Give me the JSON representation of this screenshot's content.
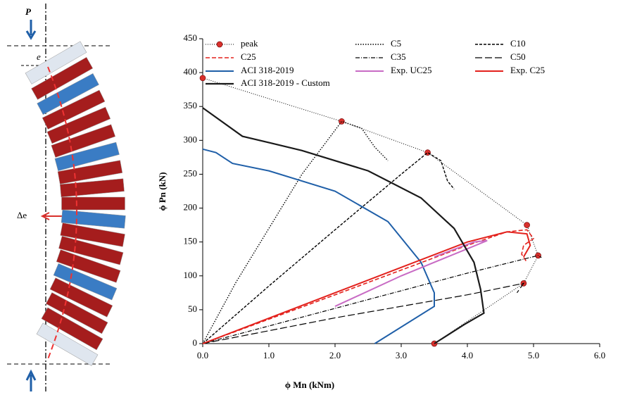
{
  "illustration": {
    "load_label": "P",
    "eccentricity_label": "e",
    "deflection_label": "Δe"
  },
  "chart_data": {
    "type": "line",
    "x_label": "ϕ Mn (kNm)",
    "y_label": "ϕ Pn (kN)",
    "xlim": [
      0,
      6
    ],
    "ylim": [
      0,
      450
    ],
    "xticks": [
      {
        "value": 0,
        "label": "0.0"
      },
      {
        "value": 1,
        "label": "1.0"
      },
      {
        "value": 2,
        "label": "2.0"
      },
      {
        "value": 3,
        "label": "3.0"
      },
      {
        "value": 4,
        "label": "4.0"
      },
      {
        "value": 5,
        "label": "5.0"
      },
      {
        "value": 6,
        "label": "6.0"
      }
    ],
    "yticks": [
      0,
      50,
      100,
      150,
      200,
      250,
      300,
      350,
      400,
      450
    ],
    "legend": "top",
    "series": [
      {
        "name": "peak",
        "color": "#000000",
        "dash": "1,2",
        "width": 1,
        "marker": "circle",
        "marker_color": "#d9302c",
        "x": [
          0,
          2.1,
          3.4,
          4.9,
          5.07,
          4.85,
          3.5
        ],
        "values": [
          392,
          328,
          282,
          175,
          130,
          89,
          0
        ]
      },
      {
        "name": "C5",
        "color": "#000000",
        "dash": "1.5,2",
        "width": 1.4,
        "x": [
          0,
          0.5,
          1.0,
          1.5,
          2.1,
          2.4,
          2.6,
          2.8
        ],
        "values": [
          0,
          90,
          170,
          250,
          328,
          318,
          290,
          270
        ]
      },
      {
        "name": "C10",
        "color": "#000000",
        "dash": "4,2",
        "width": 1.4,
        "x": [
          0,
          1.0,
          2.0,
          3.0,
          3.4,
          3.6,
          3.7,
          3.8
        ],
        "values": [
          0,
          85,
          168,
          250,
          282,
          270,
          240,
          228
        ]
      },
      {
        "name": "C25",
        "color": "#e3211c",
        "dash": "6,3",
        "width": 1.6,
        "x": [
          0,
          2.0,
          4.0,
          4.6,
          4.9,
          5.0,
          4.85,
          4.82,
          4.9
        ],
        "values": [
          0,
          72,
          145,
          165,
          168,
          155,
          145,
          132,
          120
        ]
      },
      {
        "name": "C35",
        "color": "#000000",
        "dash": "6,2,1,2",
        "width": 1.2,
        "x": [
          0,
          2.0,
          4.0,
          5.07,
          5.12
        ],
        "values": [
          0,
          52,
          104,
          130,
          127
        ]
      },
      {
        "name": "C50",
        "color": "#000000",
        "dash": "10,4",
        "width": 1.2,
        "x": [
          0,
          2.0,
          4.0,
          4.85,
          4.75
        ],
        "values": [
          0,
          38,
          72,
          89,
          75
        ]
      },
      {
        "name": "ACI 318-2019",
        "color": "#1f5fa8",
        "dash": "",
        "width": 2,
        "x": [
          0,
          0.2,
          0.45,
          1.0,
          2.0,
          2.8,
          3.3,
          3.5,
          3.5,
          2.6
        ],
        "values": [
          287,
          282,
          266,
          255,
          225,
          180,
          120,
          75,
          55,
          0
        ]
      },
      {
        "name": "Exp. UC25",
        "color": "#c86bc4",
        "dash": "",
        "width": 2,
        "x": [
          2.0,
          3.0,
          4.0,
          4.3,
          4.1,
          3.5
        ],
        "values": [
          55,
          100,
          140,
          152,
          150,
          128
        ]
      },
      {
        "name": "Exp. C25",
        "color": "#e3211c",
        "dash": "",
        "width": 2,
        "x": [
          0,
          2.0,
          4.0,
          4.6,
          4.9,
          4.95,
          4.85
        ],
        "values": [
          0,
          75,
          150,
          165,
          162,
          145,
          128
        ]
      },
      {
        "name": "ACI 318-2019 - Custom",
        "color": "#1a1a1a",
        "dash": "",
        "width": 2.2,
        "x": [
          0,
          0.6,
          1.5,
          2.5,
          3.3,
          3.8,
          4.1,
          4.2,
          4.25,
          3.95,
          3.5
        ],
        "values": [
          348,
          306,
          285,
          255,
          215,
          170,
          120,
          80,
          45,
          28,
          0
        ]
      }
    ]
  }
}
